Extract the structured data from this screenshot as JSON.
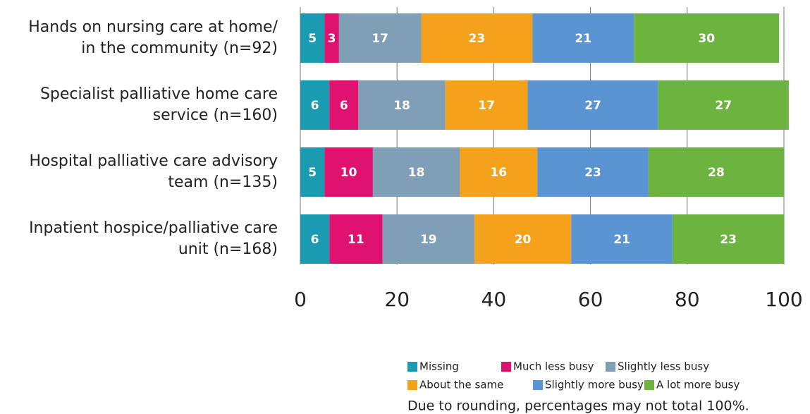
{
  "chart_data": {
    "type": "stacked-bar-horizontal",
    "categories": [
      [
        "Hands on nursing care at home/",
        "in the community (n=92)"
      ],
      [
        "Specialist palliative home care",
        "service (n=160)"
      ],
      [
        "Hospital palliative care advisory",
        "team (n=135)"
      ],
      [
        "Inpatient hospice/palliative care",
        "unit (n=168)"
      ]
    ],
    "series": [
      {
        "name": "Missing",
        "color": "#1a9bb2",
        "values": [
          5,
          6,
          5,
          6
        ]
      },
      {
        "name": "Much less busy",
        "color": "#e0126f",
        "values": [
          3,
          6,
          10,
          11
        ]
      },
      {
        "name": "Slightly less busy",
        "color": "#7f9fb6",
        "values": [
          17,
          18,
          18,
          19
        ]
      },
      {
        "name": "About the same",
        "color": "#f4a11c",
        "values": [
          23,
          17,
          16,
          20
        ]
      },
      {
        "name": "Slightly more busy",
        "color": "#5a94d2",
        "values": [
          21,
          27,
          23,
          21
        ]
      },
      {
        "name": "A lot more busy",
        "color": "#6db33f",
        "values": [
          30,
          27,
          28,
          23
        ]
      }
    ],
    "xlim": [
      0,
      100
    ],
    "xticks": [
      0,
      20,
      40,
      60,
      80,
      100
    ],
    "grid": true,
    "note": "Due to rounding, percentages may not total 100%."
  }
}
